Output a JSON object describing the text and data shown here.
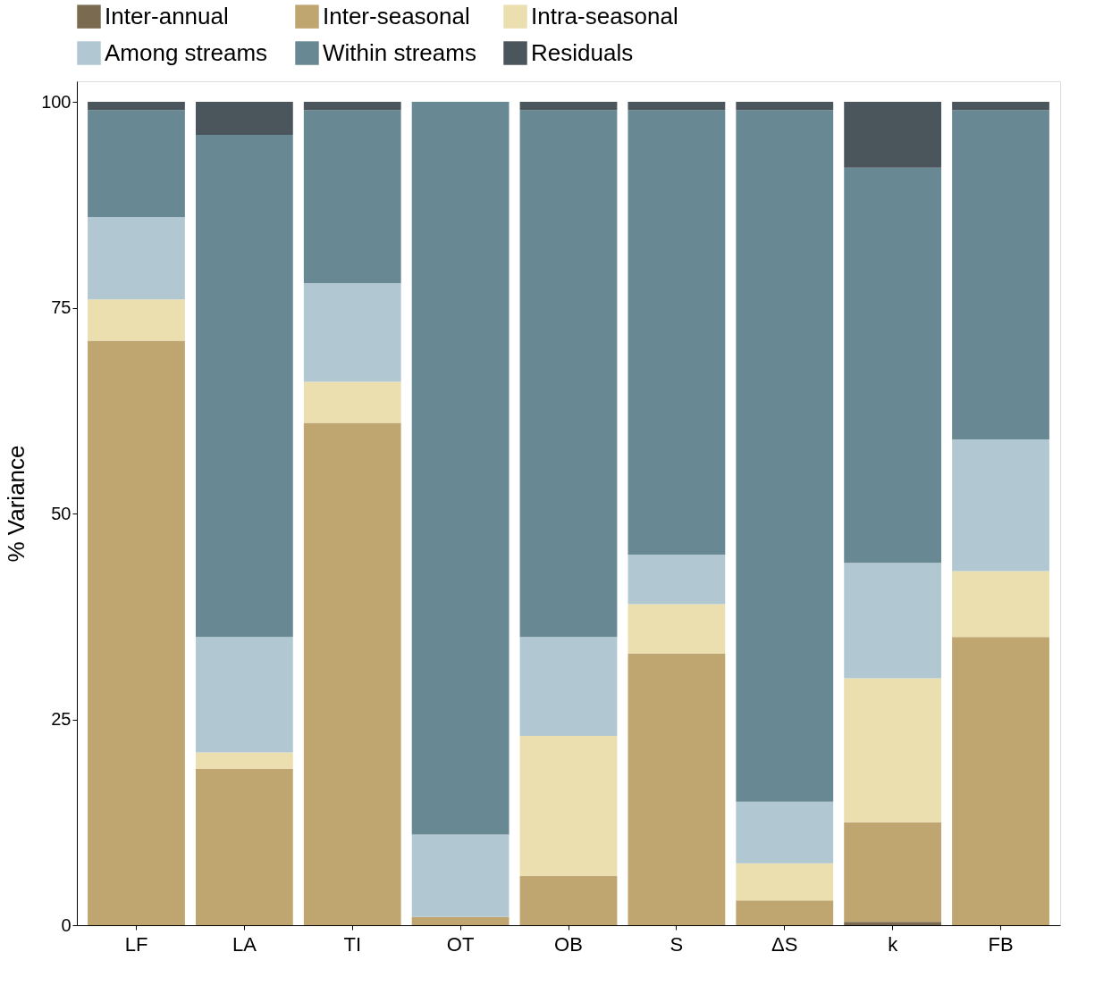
{
  "chart_data": {
    "type": "bar",
    "stacked": true,
    "ylabel": "% Variance",
    "categories": [
      "LF",
      "LA",
      "TI",
      "OT",
      "OB",
      "S",
      "ΔS",
      "k",
      "FB"
    ],
    "ylim": [
      0,
      102.5
    ],
    "yticks": [
      0,
      25,
      50,
      75,
      100
    ],
    "grid": false,
    "legend": "top",
    "series": [
      {
        "name": "Inter-annual",
        "color": "#7a6a50",
        "values": [
          0,
          0,
          0,
          0,
          0,
          0,
          0,
          0.4,
          0
        ]
      },
      {
        "name": "Inter-seasonal",
        "color": "#bfa56f",
        "values": [
          71,
          19,
          61,
          1,
          6,
          33,
          3,
          12.1,
          35
        ]
      },
      {
        "name": "Intra-seasonal",
        "color": "#ebdfb0",
        "values": [
          5,
          2,
          5,
          0,
          17,
          6,
          4.5,
          17.5,
          8
        ]
      },
      {
        "name": "Among streams",
        "color": "#b1c8d3",
        "values": [
          10,
          14,
          12,
          10,
          12,
          6,
          7.5,
          14,
          16
        ]
      },
      {
        "name": "Within streams",
        "color": "#688894",
        "values": [
          13,
          61,
          21,
          89,
          64,
          54,
          84,
          48,
          40
        ]
      },
      {
        "name": "Residuals",
        "color": "#4b555c",
        "values": [
          1,
          4,
          1,
          0,
          1,
          1,
          1,
          8,
          1
        ]
      }
    ]
  }
}
